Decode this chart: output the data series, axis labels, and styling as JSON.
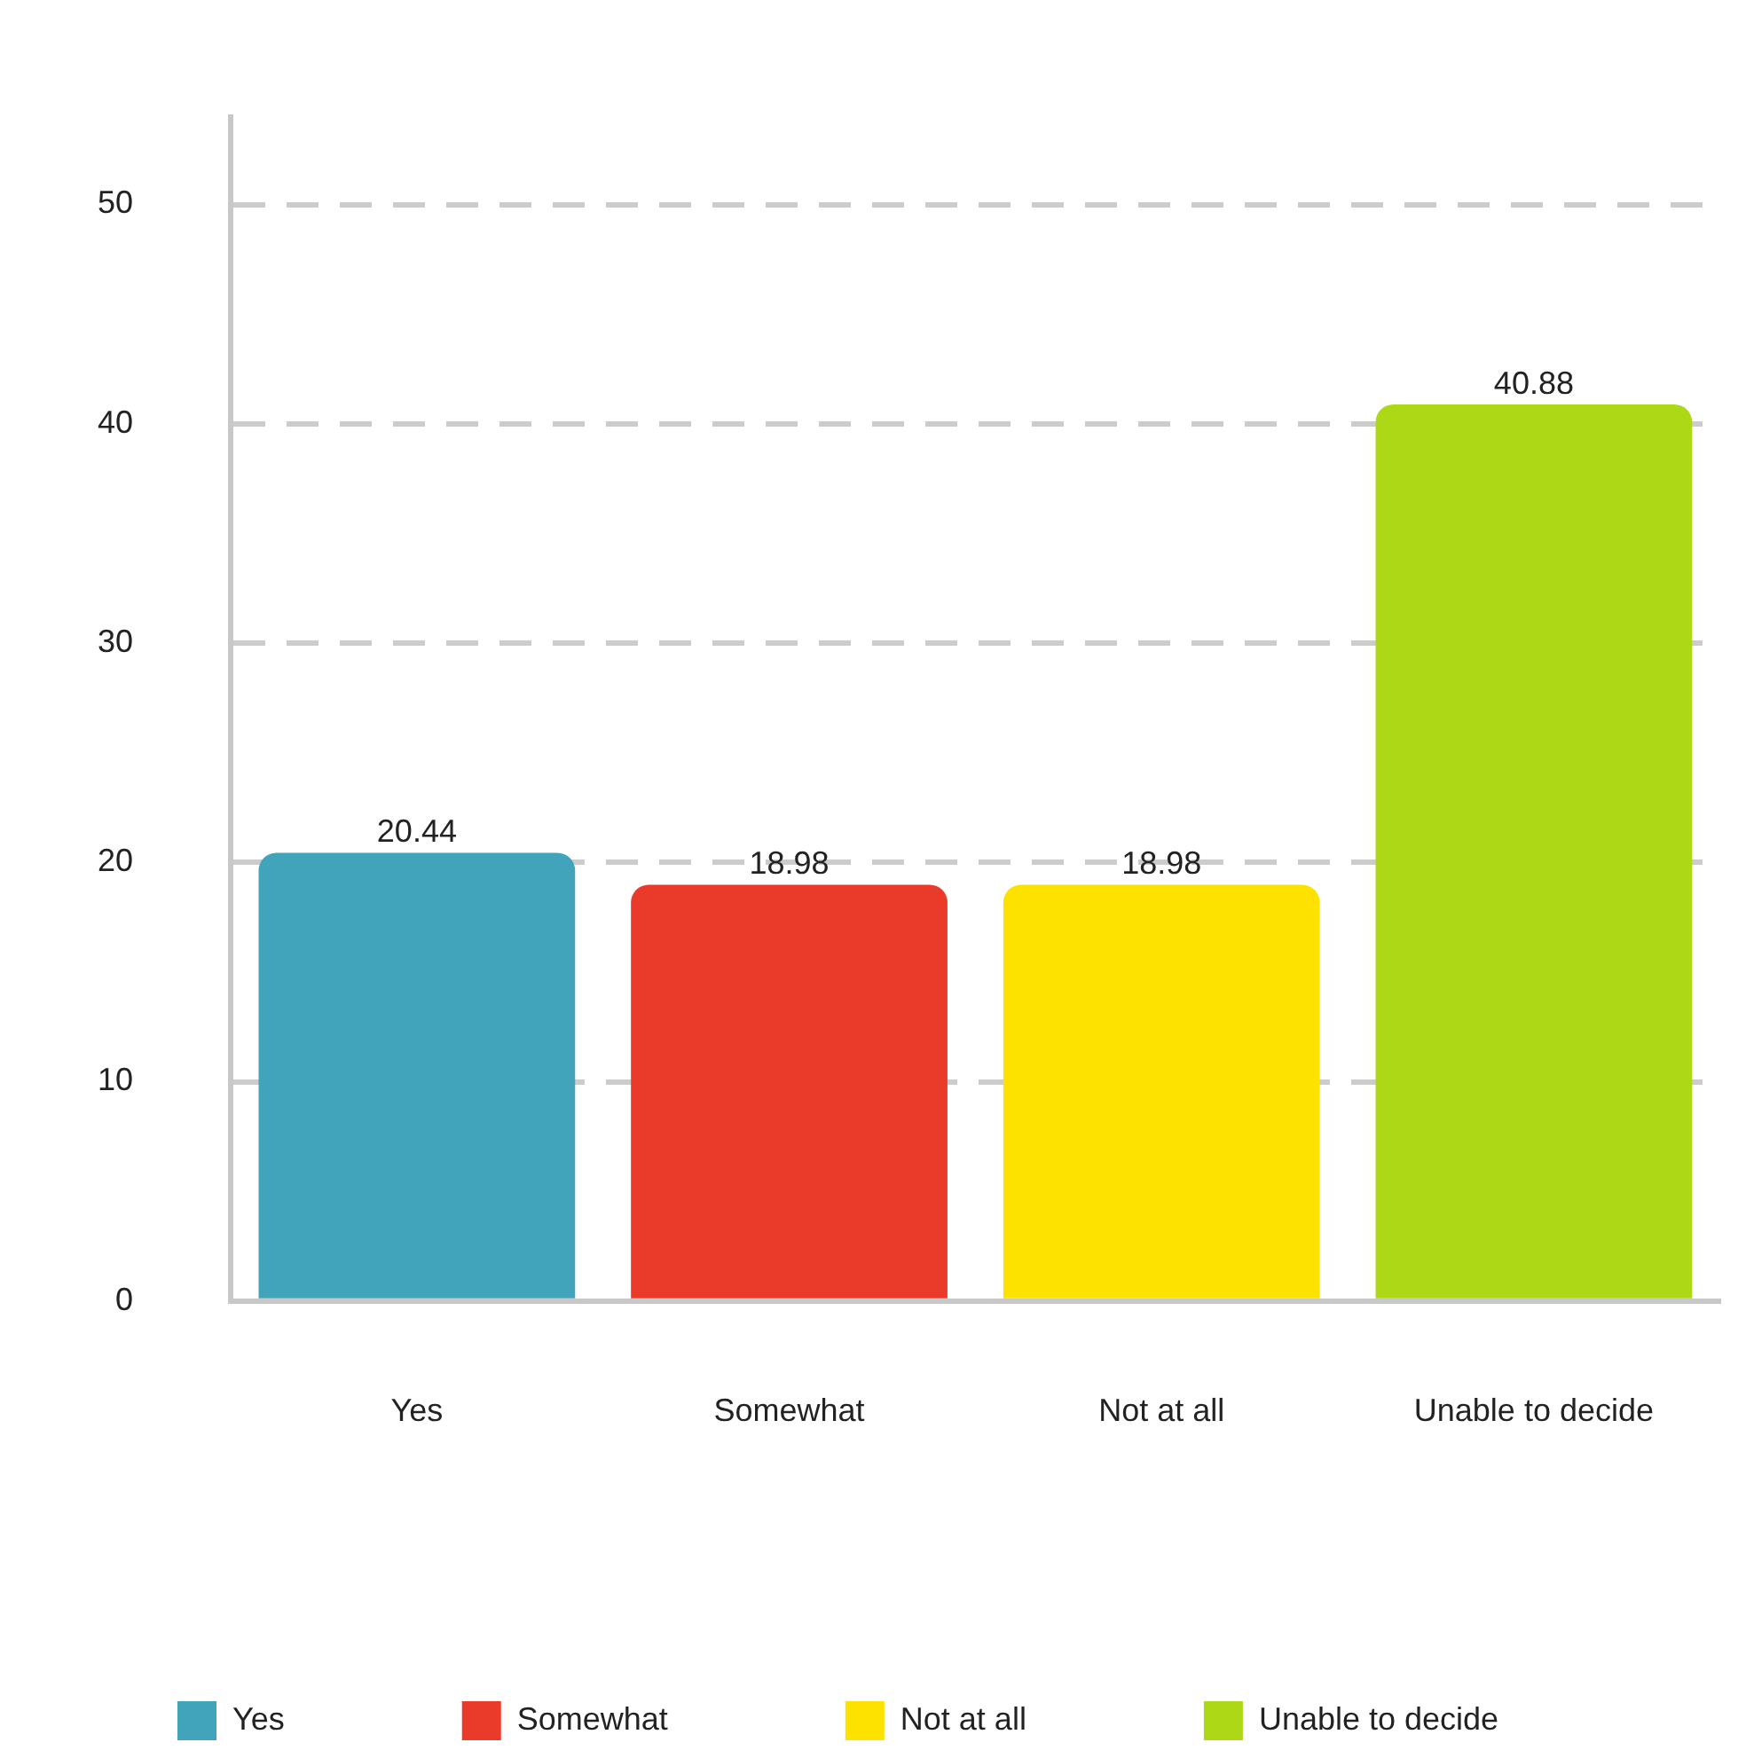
{
  "chart_data": {
    "type": "bar",
    "categories": [
      "Yes",
      "Somewhat",
      "Not at all",
      "Unable to decide"
    ],
    "series": [
      {
        "name": "Yes",
        "color": "#41a4bb",
        "values": [
          20.44,
          null,
          null,
          null
        ]
      },
      {
        "name": "Somewhat",
        "color": "#ea3a2a",
        "values": [
          null,
          18.98,
          null,
          null
        ]
      },
      {
        "name": "Not at all",
        "color": "#fde200",
        "values": [
          null,
          null,
          18.98,
          null
        ]
      },
      {
        "name": "Unable to decide",
        "color": "#acd816",
        "values": [
          null,
          null,
          null,
          40.88
        ]
      }
    ],
    "ylim": [
      0,
      54
    ],
    "yticks": [
      0,
      10,
      20,
      30,
      40,
      50
    ],
    "grid": "y",
    "legend": "bottom",
    "data_labels": true
  }
}
